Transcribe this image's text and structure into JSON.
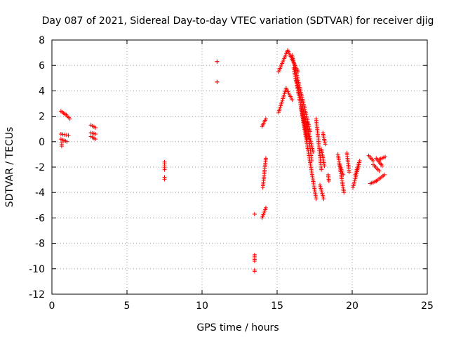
{
  "chart_data": {
    "type": "scatter",
    "title": "Day 087 of 2021, Sidereal Day-to-day VTEC variation (SDTVAR) for receiver djig",
    "xlabel": "GPS time / hours",
    "ylabel": "SDTVAR / TECUs",
    "xlim": [
      0,
      25
    ],
    "ylim": [
      -12,
      8
    ],
    "xticks": [
      0,
      5,
      10,
      15,
      20,
      25
    ],
    "yticks": [
      -12,
      -10,
      -8,
      -6,
      -4,
      -2,
      0,
      2,
      4,
      6,
      8
    ],
    "grid": true,
    "marker": "+",
    "marker_color": "#ff0000",
    "series": [
      {
        "name": "SDTVAR",
        "segments": [
          {
            "x0": 0.6,
            "x1": 0.95,
            "y0": 2.4,
            "y1": 2.1
          },
          {
            "x0": 0.95,
            "x1": 1.2,
            "y0": 2.1,
            "y1": 1.8
          },
          {
            "x0": 0.6,
            "x1": 1.1,
            "y0": 0.6,
            "y1": 0.5
          },
          {
            "x0": 0.6,
            "x1": 1.0,
            "y0": 0.2,
            "y1": 0.0
          },
          {
            "x0": 0.65,
            "x1": 0.65,
            "y0": -0.1,
            "y1": -0.35
          },
          {
            "x0": 2.6,
            "x1": 2.9,
            "y0": 1.3,
            "y1": 1.1
          },
          {
            "x0": 2.6,
            "x1": 2.9,
            "y0": 0.7,
            "y1": 0.6
          },
          {
            "x0": 2.6,
            "x1": 2.9,
            "y0": 0.4,
            "y1": 0.2
          },
          {
            "x0": 7.5,
            "x1": 7.5,
            "y0": -1.6,
            "y1": -2.2
          },
          {
            "x0": 7.5,
            "x1": 7.5,
            "y0": -2.8,
            "y1": -2.95
          },
          {
            "x0": 11.0,
            "x1": 11.0,
            "y0": 6.3,
            "y1": 6.3
          },
          {
            "x0": 11.0,
            "x1": 11.0,
            "y0": 4.7,
            "y1": 4.7
          },
          {
            "x0": 13.5,
            "x1": 13.5,
            "y0": -5.7,
            "y1": -5.7
          },
          {
            "x0": 13.5,
            "x1": 13.5,
            "y0": -8.9,
            "y1": -9.4
          },
          {
            "x0": 13.5,
            "x1": 13.5,
            "y0": -10.1,
            "y1": -10.2
          },
          {
            "x0": 14.0,
            "x1": 14.25,
            "y0": 1.2,
            "y1": 1.8
          },
          {
            "x0": 14.05,
            "x1": 14.25,
            "y0": -3.6,
            "y1": -1.3
          },
          {
            "x0": 14.0,
            "x1": 14.25,
            "y0": -6.0,
            "y1": -5.2
          },
          {
            "x0": 15.1,
            "x1": 15.7,
            "y0": 5.5,
            "y1": 7.2
          },
          {
            "x0": 15.7,
            "x1": 16.4,
            "y0": 7.2,
            "y1": 5.5
          },
          {
            "x0": 15.1,
            "x1": 15.6,
            "y0": 2.3,
            "y1": 4.2
          },
          {
            "x0": 15.6,
            "x1": 16.0,
            "y0": 4.2,
            "y1": 3.3
          },
          {
            "x0": 16.0,
            "x1": 17.2,
            "y0": 6.8,
            "y1": 0.8
          },
          {
            "x0": 16.1,
            "x1": 17.0,
            "y0": 5.8,
            "y1": 0.2
          },
          {
            "x0": 16.3,
            "x1": 17.4,
            "y0": 4.8,
            "y1": -0.8
          },
          {
            "x0": 16.6,
            "x1": 17.6,
            "y0": 2.6,
            "y1": -4.5
          },
          {
            "x0": 17.0,
            "x1": 17.3,
            "y0": 1.5,
            "y1": -1.5
          },
          {
            "x0": 17.6,
            "x1": 17.95,
            "y0": 1.8,
            "y1": -2.2
          },
          {
            "x0": 17.85,
            "x1": 18.1,
            "y0": -3.4,
            "y1": -4.5
          },
          {
            "x0": 17.95,
            "x1": 18.15,
            "y0": -0.6,
            "y1": -1.9
          },
          {
            "x0": 18.05,
            "x1": 18.2,
            "y0": 0.7,
            "y1": -0.2
          },
          {
            "x0": 18.4,
            "x1": 18.45,
            "y0": -2.6,
            "y1": -3.1
          },
          {
            "x0": 19.05,
            "x1": 19.45,
            "y0": -1.0,
            "y1": -4.0
          },
          {
            "x0": 19.2,
            "x1": 19.4,
            "y0": -1.9,
            "y1": -2.6
          },
          {
            "x0": 19.65,
            "x1": 19.8,
            "y0": -0.9,
            "y1": -2.4
          },
          {
            "x0": 20.05,
            "x1": 20.45,
            "y0": -3.6,
            "y1": -1.8
          },
          {
            "x0": 20.2,
            "x1": 20.5,
            "y0": -2.6,
            "y1": -1.5
          },
          {
            "x0": 21.1,
            "x1": 21.4,
            "y0": -1.1,
            "y1": -1.5
          },
          {
            "x0": 21.2,
            "x1": 21.6,
            "y0": -3.3,
            "y1": -3.1
          },
          {
            "x0": 21.4,
            "x1": 21.8,
            "y0": -1.8,
            "y1": -2.3
          },
          {
            "x0": 21.6,
            "x1": 22.0,
            "y0": -1.3,
            "y1": -1.9
          },
          {
            "x0": 21.6,
            "x1": 22.15,
            "y0": -3.1,
            "y1": -2.6
          },
          {
            "x0": 21.8,
            "x1": 22.2,
            "y0": -1.4,
            "y1": -1.2
          }
        ]
      }
    ]
  }
}
